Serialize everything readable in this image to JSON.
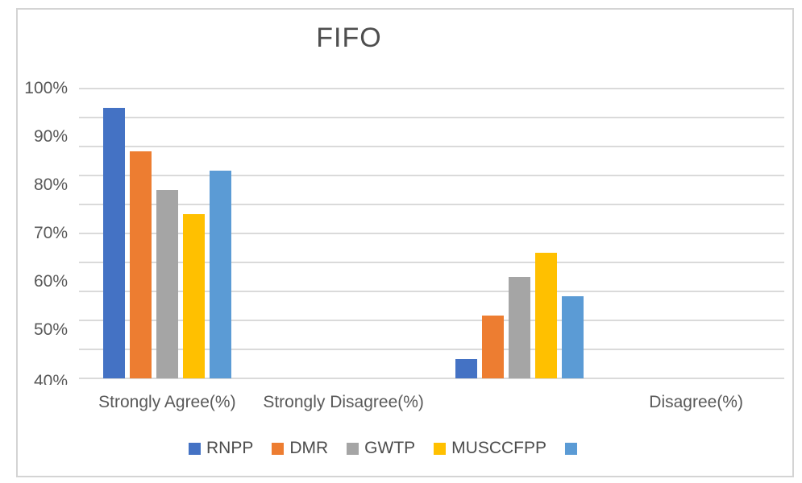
{
  "chart_data": {
    "type": "bar",
    "title": "FIFO",
    "categories": [
      "Strongly Agree(%)",
      "Strongly Disagree(%)",
      "",
      "Disagree(%)"
    ],
    "series": [
      {
        "name": "RNPP",
        "color": "#4472C4",
        "values": [
          96,
          null,
          44,
          null
        ]
      },
      {
        "name": "DMR",
        "color": "#ED7D31",
        "values": [
          87,
          null,
          53,
          null
        ]
      },
      {
        "name": "GWTP",
        "color": "#A5A5A5",
        "values": [
          79,
          null,
          61,
          null
        ]
      },
      {
        "name": "MUSCCFPP",
        "color": "#FFC000",
        "values": [
          74,
          null,
          66,
          null
        ]
      },
      {
        "name": "",
        "color": "#5B9BD5",
        "values": [
          83,
          null,
          57,
          null
        ]
      }
    ],
    "y_axis": {
      "min": 40,
      "max": 100,
      "tick_values": [
        100,
        90,
        80,
        70,
        60,
        50,
        40
      ],
      "tick_labels": [
        "100%",
        "90%",
        "80%",
        "70%",
        "60%",
        "50%",
        "40%"
      ],
      "gridline_step": 6,
      "unit": "percent"
    },
    "xlabel": "",
    "ylabel": "",
    "grid": true,
    "legend_position": "bottom"
  },
  "colors": {
    "gridline": "#dadada",
    "chart_border": "#d4d4d4",
    "axis_text": "#595959",
    "title_text": "#4e4e4e",
    "legend_text": "#4d4d4d",
    "background": "#ffffff"
  }
}
